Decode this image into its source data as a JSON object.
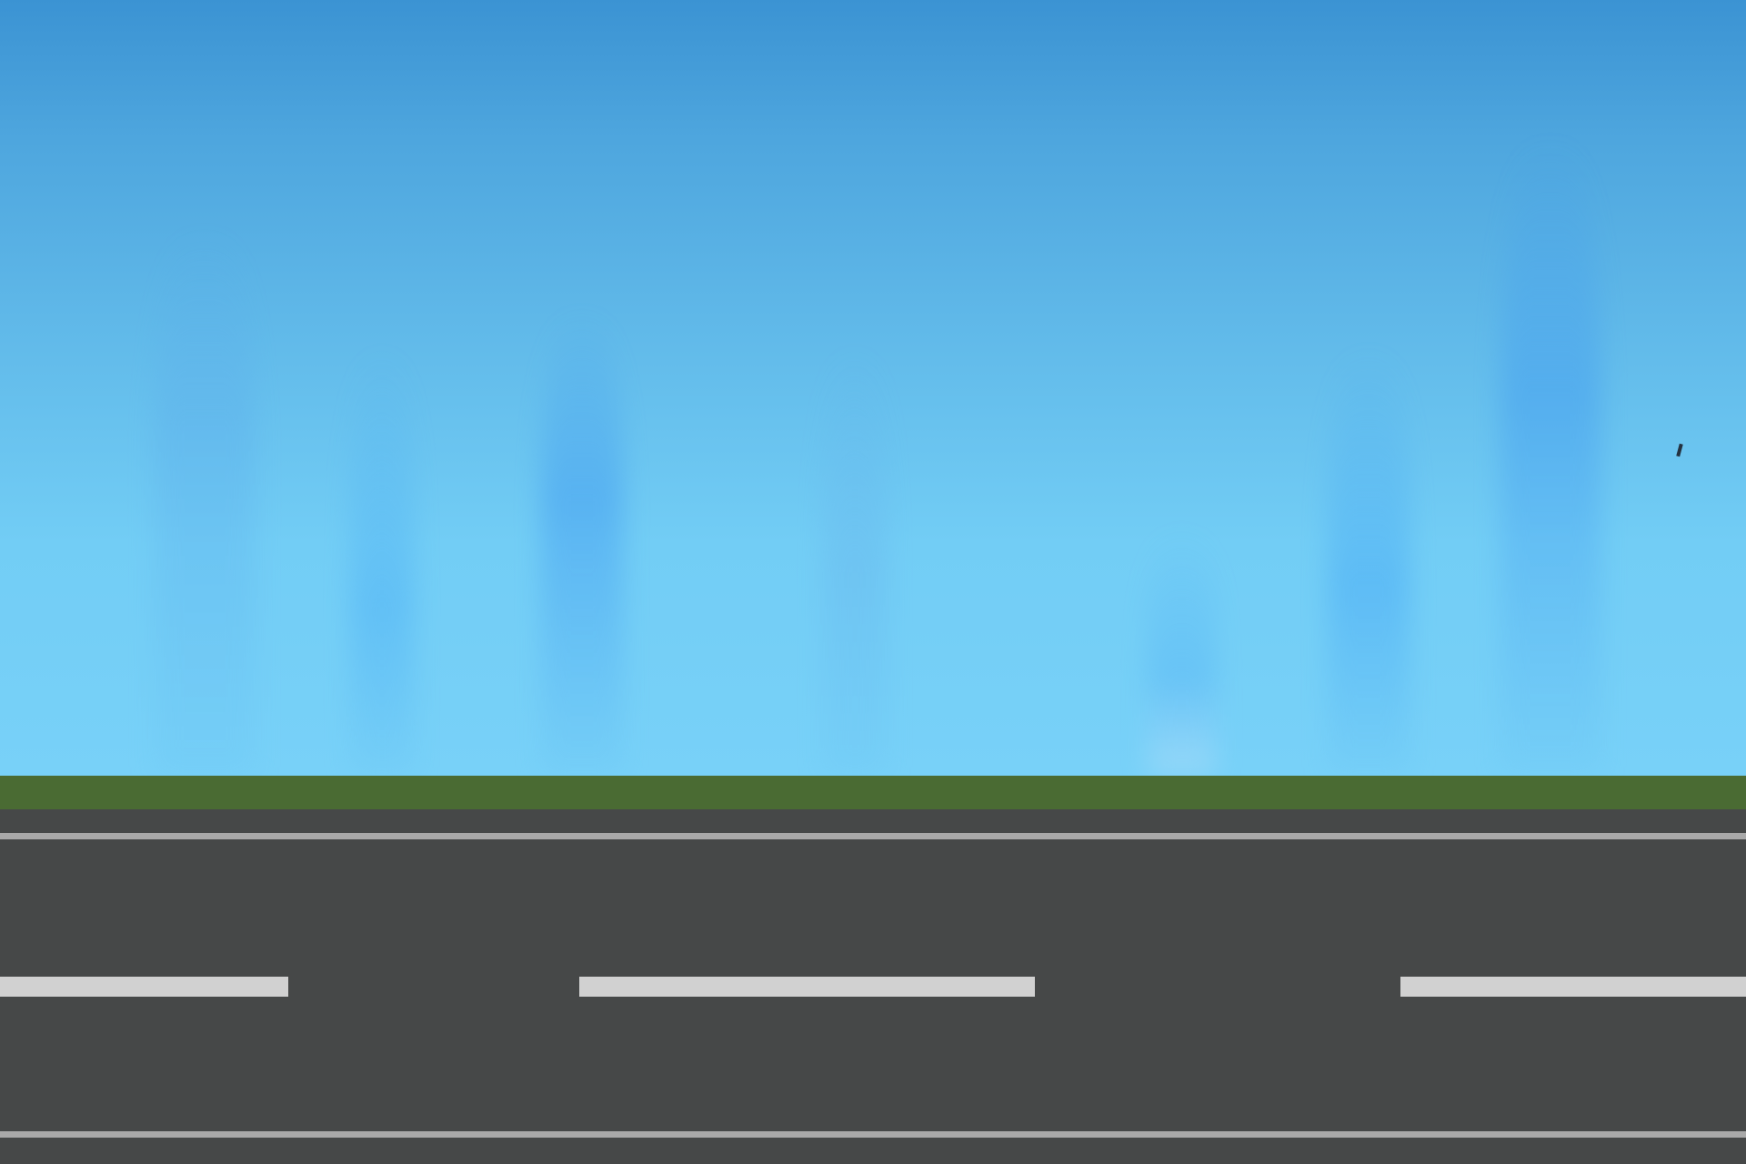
{
  "scene": {
    "sky_color_top": "#3b93d3",
    "sky_color_bottom": "#78d1f8",
    "grass_color": "#4a6b33",
    "road_color": "#464848",
    "edge_line_color": "#a9a9a9",
    "lane_marking_color": "#d1d1d1"
  },
  "hud": {}
}
